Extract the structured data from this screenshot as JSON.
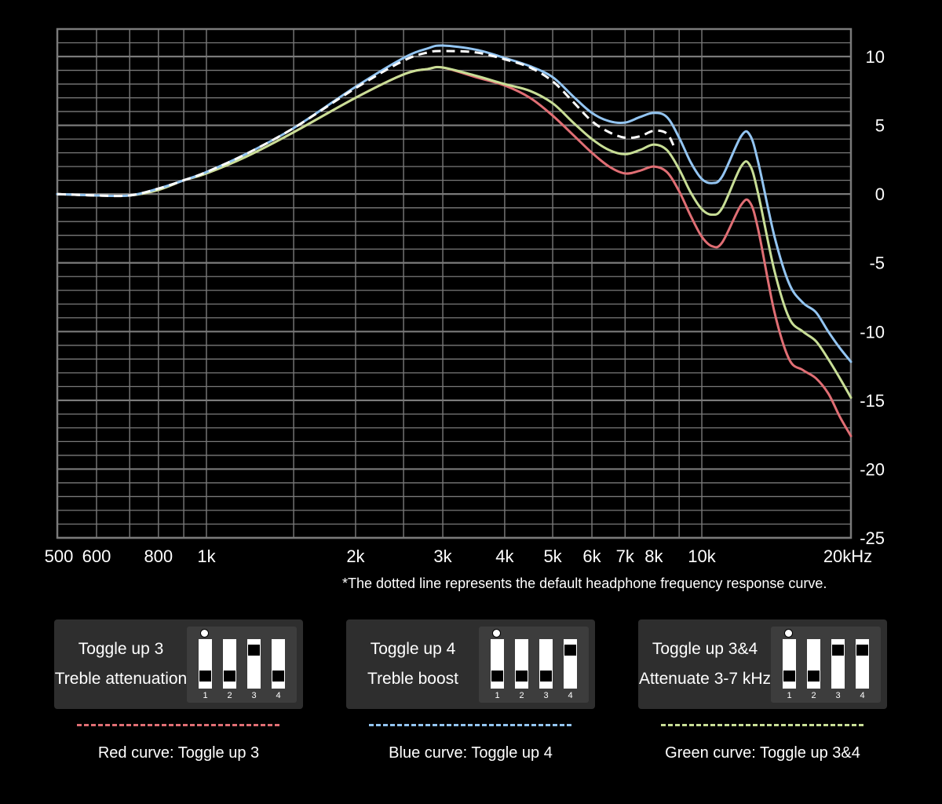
{
  "chart_data": {
    "type": "line",
    "x_scale": "log",
    "xlim": [
      500,
      20000
    ],
    "ylim": [
      -25,
      12
    ],
    "x_ticks": [
      500,
      600,
      800,
      1000,
      2000,
      3000,
      4000,
      5000,
      6000,
      7000,
      8000,
      10000,
      20000
    ],
    "x_tick_labels": [
      "500",
      "600",
      "800",
      "1k",
      "2k",
      "3k",
      "4k",
      "5k",
      "6k",
      "7k",
      "8k",
      "10k",
      "20kHz"
    ],
    "y_ticks": [
      10,
      5,
      0,
      -5,
      -10,
      -15,
      -20,
      -25
    ],
    "y_tick_labels": [
      "10",
      "5",
      "0",
      "-5",
      "-10",
      "-15",
      "-20",
      "-25"
    ],
    "grid": true,
    "series": [
      {
        "name": "Default",
        "color": "#ffffff",
        "style": "dashed",
        "x": [
          500,
          600,
          700,
          800,
          900,
          1000,
          1200,
          1500,
          2000,
          2500,
          2800,
          3000,
          3500,
          4000,
          4500,
          5000,
          5500,
          6000,
          6500,
          7000,
          7500,
          8000,
          8500,
          8800
        ],
        "y": [
          0,
          -0.1,
          -0.1,
          0.4,
          1.0,
          1.6,
          2.9,
          4.8,
          7.7,
          9.7,
          10.3,
          10.4,
          10.3,
          9.8,
          9.2,
          8.2,
          6.7,
          5.3,
          4.5,
          4.1,
          4.2,
          4.6,
          4.4,
          3.4
        ]
      },
      {
        "name": "Red curve: Toggle up 3",
        "color": "#e06e74",
        "style": "solid",
        "x": [
          500,
          600,
          700,
          800,
          900,
          1000,
          1200,
          1500,
          2000,
          2500,
          2800,
          3000,
          3500,
          4000,
          4500,
          5000,
          5500,
          6000,
          6500,
          7000,
          7500,
          8000,
          8500,
          9000,
          9500,
          10000,
          10500,
          11000,
          12000,
          12500,
          13000,
          14000,
          15000,
          16000,
          17000,
          18000,
          19000,
          20000
        ],
        "y": [
          0,
          -0.1,
          -0.1,
          0.3,
          1.0,
          1.5,
          2.7,
          4.5,
          7.0,
          8.7,
          9.1,
          9.2,
          8.5,
          7.9,
          7.0,
          5.7,
          4.3,
          3.0,
          2.0,
          1.5,
          1.7,
          2.0,
          1.6,
          0.2,
          -1.6,
          -3.1,
          -3.8,
          -3.5,
          -0.8,
          -0.6,
          -2.6,
          -8.5,
          -12.0,
          -12.8,
          -13.4,
          -14.5,
          -16.2,
          -17.6
        ]
      },
      {
        "name": "Blue curve: Toggle up 4",
        "color": "#93c5f2",
        "style": "solid",
        "x": [
          500,
          600,
          700,
          800,
          900,
          1000,
          1200,
          1500,
          2000,
          2500,
          2800,
          3000,
          3500,
          4000,
          4500,
          5000,
          5500,
          6000,
          6500,
          7000,
          7500,
          8000,
          8500,
          9000,
          9500,
          10000,
          10500,
          11000,
          12000,
          12500,
          13000,
          14000,
          15000,
          16000,
          17000,
          18000,
          19000,
          20000
        ],
        "y": [
          0,
          -0.1,
          -0.1,
          0.4,
          1.0,
          1.6,
          2.9,
          4.8,
          7.8,
          9.9,
          10.6,
          10.8,
          10.5,
          9.9,
          9.3,
          8.5,
          7.1,
          5.9,
          5.3,
          5.2,
          5.6,
          5.9,
          5.6,
          4.1,
          2.3,
          1.1,
          0.8,
          1.3,
          4.2,
          4.3,
          2.3,
          -3.0,
          -6.5,
          -7.9,
          -8.6,
          -10.0,
          -11.2,
          -12.2
        ]
      },
      {
        "name": "Green curve: Toggle up 3&4",
        "color": "#c8de96",
        "style": "solid",
        "x": [
          500,
          600,
          700,
          800,
          900,
          1000,
          1200,
          1500,
          2000,
          2500,
          2800,
          3000,
          3500,
          4000,
          4500,
          5000,
          5500,
          6000,
          6500,
          7000,
          7500,
          8000,
          8500,
          9000,
          9500,
          10000,
          10500,
          11000,
          12000,
          12500,
          13000,
          14000,
          15000,
          16000,
          17000,
          18000,
          19000,
          20000
        ],
        "y": [
          0,
          -0.1,
          -0.1,
          0.3,
          1.0,
          1.5,
          2.7,
          4.5,
          7.0,
          8.7,
          9.1,
          9.2,
          8.6,
          8.0,
          7.5,
          6.6,
          5.2,
          4.0,
          3.2,
          2.9,
          3.2,
          3.6,
          3.2,
          1.8,
          0.1,
          -1.1,
          -1.5,
          -1.0,
          2.0,
          2.1,
          0.0,
          -5.5,
          -9.0,
          -10.0,
          -10.7,
          -12.0,
          -13.4,
          -14.8
        ]
      }
    ]
  },
  "note": "*The dotted line represents the default headphone frequency response curve.",
  "cards": [
    {
      "line1": "Toggle up 3",
      "line2": "Treble attenuation",
      "switches_up": [
        false,
        false,
        true,
        false
      ],
      "numbers": [
        "1",
        "2",
        "3",
        "4"
      ]
    },
    {
      "line1": "Toggle up 4",
      "line2": "Treble boost",
      "switches_up": [
        false,
        false,
        false,
        true
      ],
      "numbers": [
        "1",
        "2",
        "3",
        "4"
      ]
    },
    {
      "line1": "Toggle up 3&4",
      "line2": "Attenuate 3-7 kHz",
      "switches_up": [
        false,
        false,
        true,
        true
      ],
      "numbers": [
        "1",
        "2",
        "3",
        "4"
      ]
    }
  ],
  "legend": [
    {
      "label": "Red curve: Toggle up 3",
      "color": "#e06e74"
    },
    {
      "label": "Blue curve: Toggle up 4",
      "color": "#93c5f2"
    },
    {
      "label": "Green curve: Toggle up 3&4",
      "color": "#c8de96"
    }
  ],
  "colors": {
    "background": "#000000",
    "grid": "#7a7a7a",
    "panel": "#2e2e2e",
    "switch_block": "#3d3d3d"
  }
}
